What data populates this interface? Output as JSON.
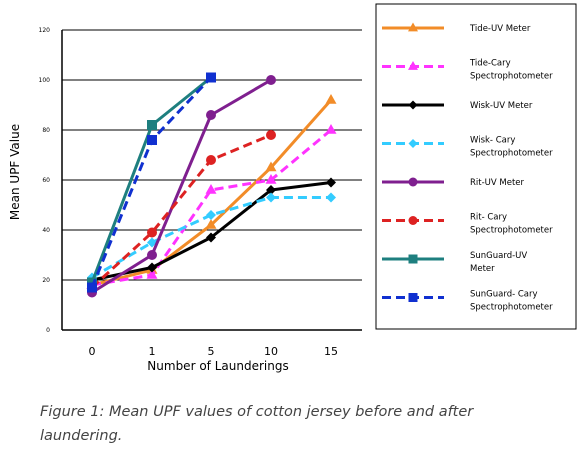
{
  "chart_data": {
    "type": "line",
    "title": "",
    "xlabel": "Number of Launderings",
    "ylabel": "Mean UPF Value",
    "categories": [
      "0",
      "1",
      "5",
      "10",
      "15"
    ],
    "yticks": [
      "0",
      "20",
      "40",
      "60",
      "80",
      "100",
      "120"
    ],
    "ylim": [
      0,
      120
    ],
    "grid": true,
    "legend_position": "right",
    "series": [
      {
        "name": "Tide-UV Meter",
        "color": "#F28C28",
        "dash": "solid",
        "marker": "triangle",
        "values": [
          18,
          24,
          42,
          65,
          92
        ]
      },
      {
        "name": "Tide-Cary Spectrophotometer",
        "color": "#FF33FF",
        "dash": "dashed",
        "marker": "triangle",
        "values": [
          18,
          22,
          56,
          60,
          80
        ]
      },
      {
        "name": "Wisk-UV Meter",
        "color": "#000000",
        "dash": "solid",
        "marker": "diamond",
        "values": [
          20,
          25,
          37,
          56,
          59
        ]
      },
      {
        "name": "Wisk- Cary Spectrophotometer",
        "color": "#33CCFF",
        "dash": "dashed",
        "marker": "diamond",
        "values": [
          21,
          35,
          46,
          53,
          53
        ]
      },
      {
        "name": "Rit-UV Meter",
        "color": "#7F1F8F",
        "dash": "solid",
        "marker": "circle",
        "values": [
          15,
          30,
          86,
          100,
          null
        ]
      },
      {
        "name": "Rit- Cary Spectrophotometer",
        "color": "#DD2222",
        "dash": "dashed",
        "marker": "circle",
        "values": [
          17,
          39,
          68,
          78,
          null
        ]
      },
      {
        "name": "SunGuard-UV Meter",
        "color": "#1E7F7F",
        "dash": "solid",
        "marker": "square",
        "values": [
          19,
          82,
          101,
          null,
          null
        ]
      },
      {
        "name": "SunGuard- Cary Spectrophotometer",
        "color": "#1030D0",
        "dash": "dashed",
        "marker": "square",
        "values": [
          17,
          76,
          101,
          null,
          null
        ]
      }
    ],
    "legend_lines": [
      [
        "Tide-UV Meter"
      ],
      [
        "Tide-Cary",
        "Spectrophotometer"
      ],
      [
        "Wisk-UV Meter"
      ],
      [
        "Wisk- Cary",
        "Spectrophotometer"
      ],
      [
        "Rit-UV Meter"
      ],
      [
        "Rit- Cary",
        "Spectrophotometer"
      ],
      [
        "SunGuard-UV",
        "Meter"
      ],
      [
        "SunGuard- Cary",
        "Spectrophotometer"
      ]
    ]
  },
  "caption": "Figure 1: Mean UPF values of cotton jersey before and after laundering."
}
